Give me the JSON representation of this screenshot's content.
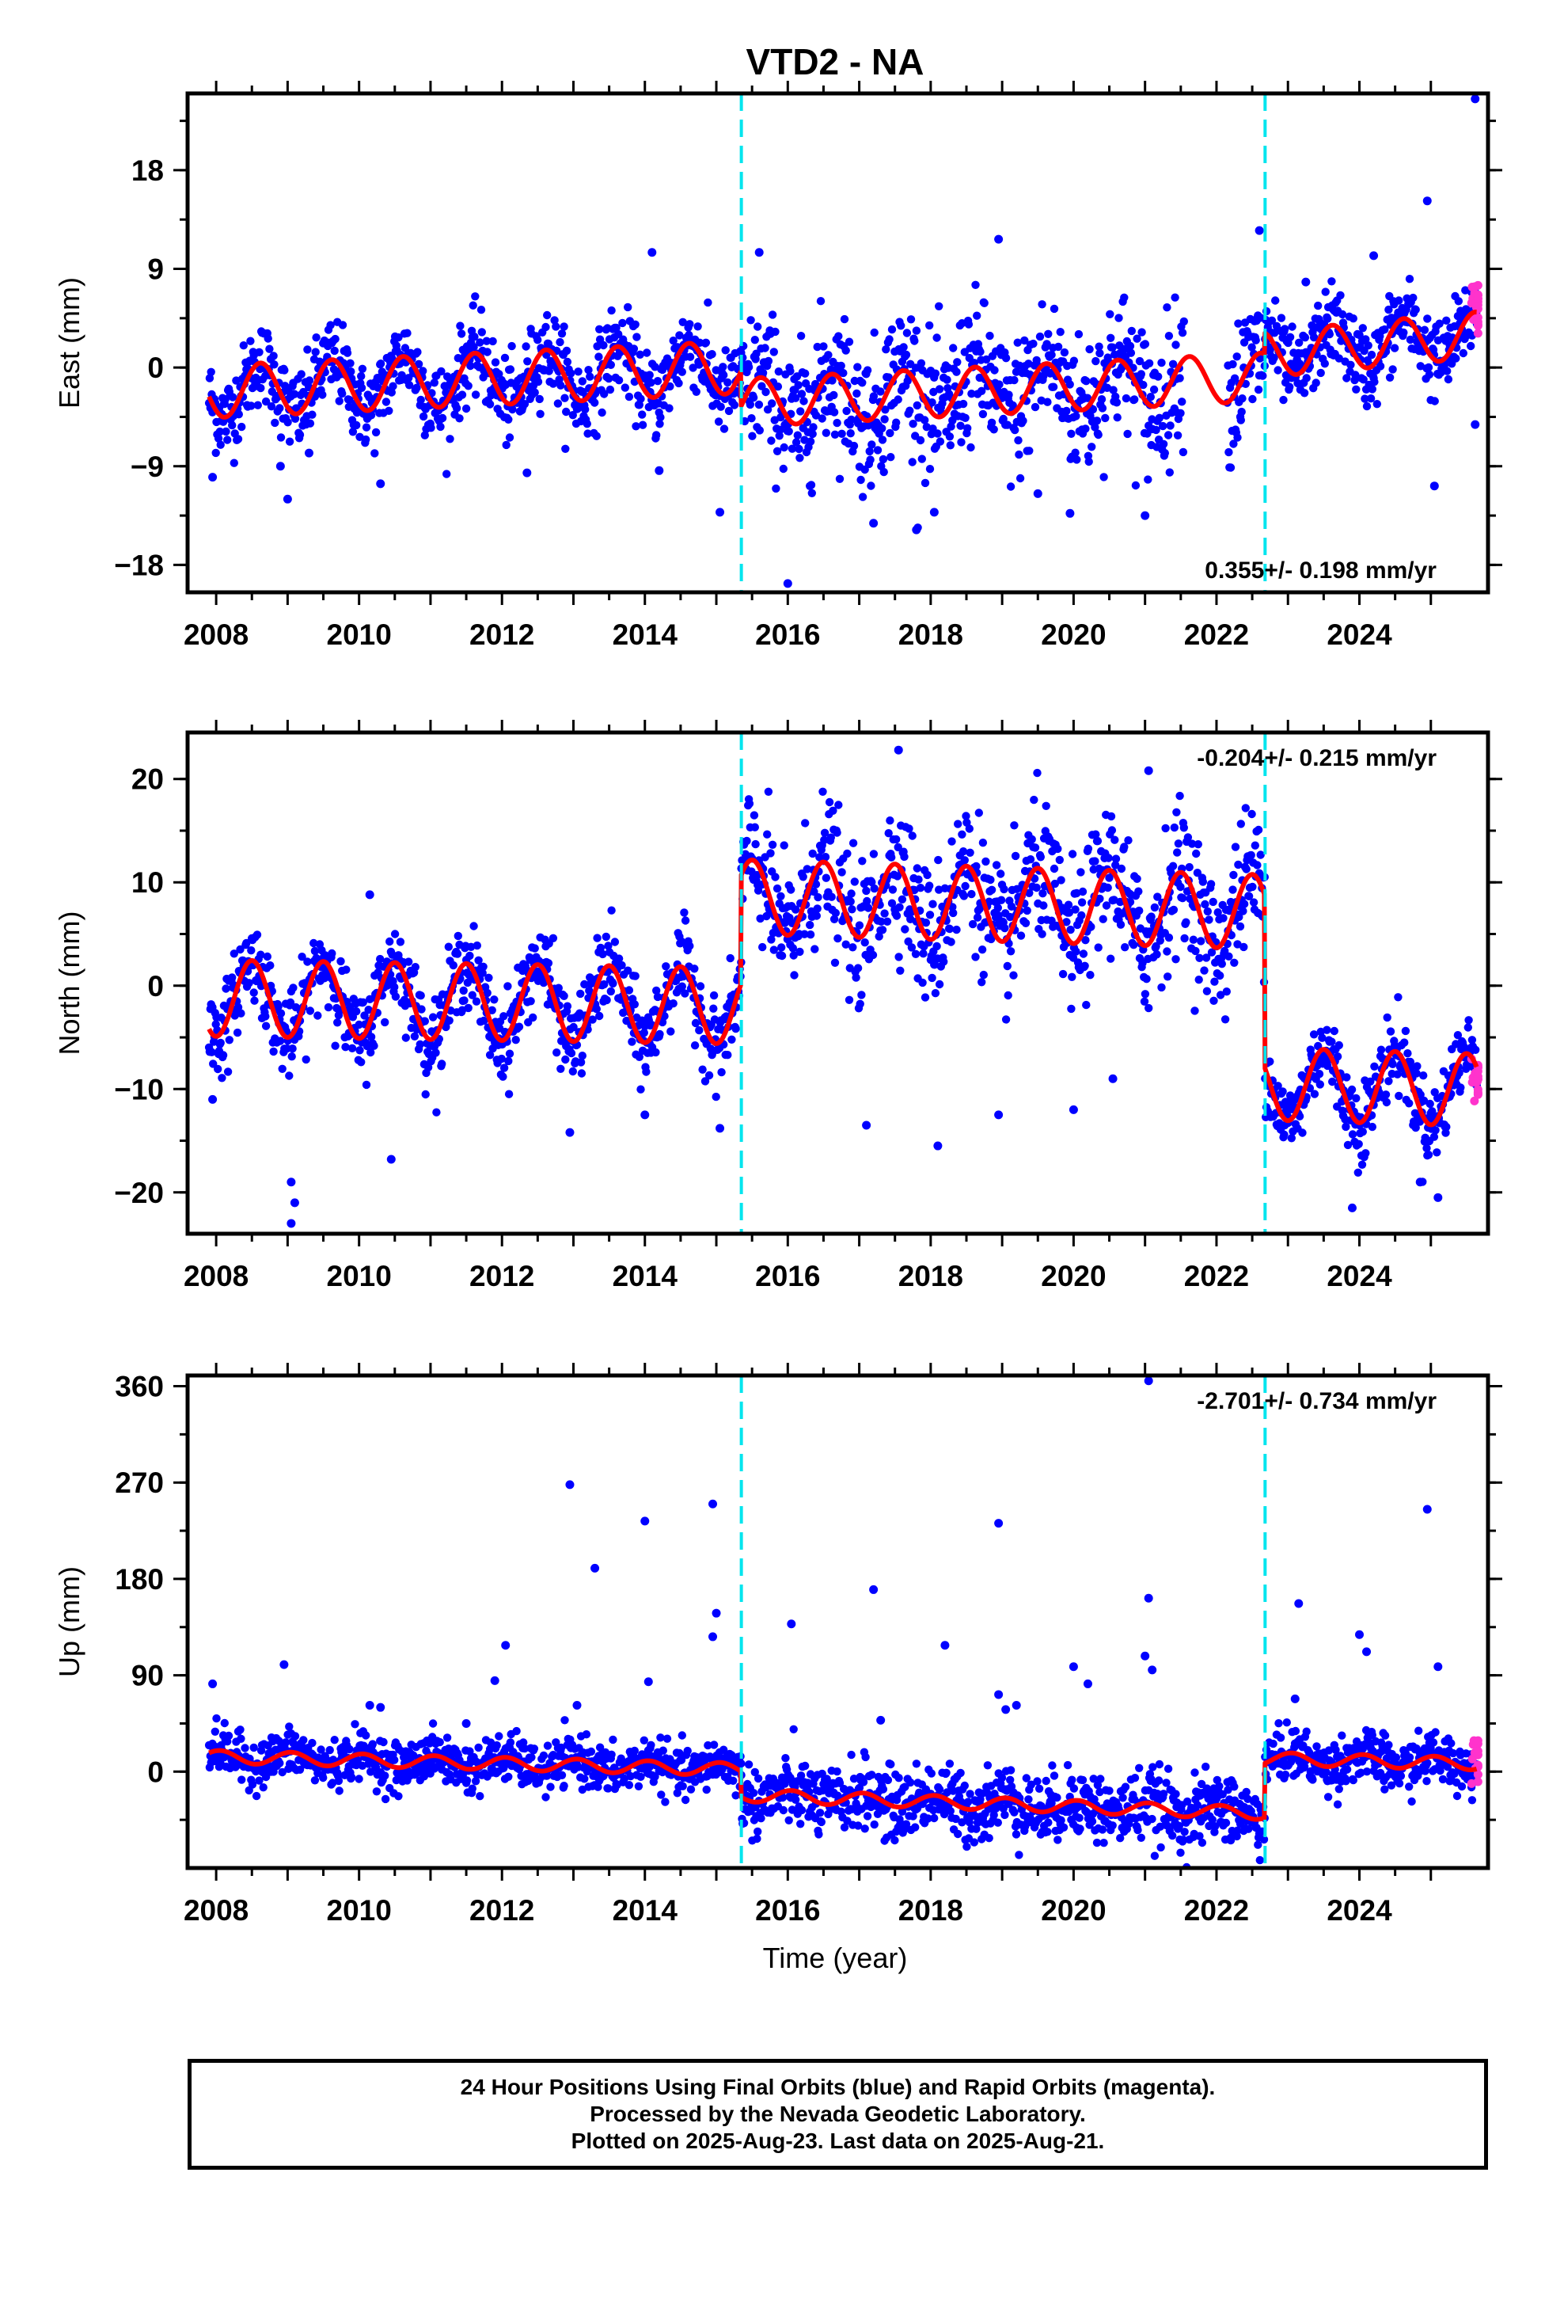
{
  "title": "VTD2 - NA",
  "xlabel": "Time (year)",
  "colors": {
    "final": "#0000ff",
    "rapid": "#ff33cc",
    "model": "#ff0000",
    "breaks": "#00e5ee",
    "frame": "#000000"
  },
  "footer": {
    "line1": "24 Hour Positions Using Final Orbits (blue) and Rapid Orbits (magenta).",
    "line2": "Processed by the Nevada Geodetic Laboratory.",
    "line3": "Plotted on 2025-Aug-23. Last data on 2025-Aug-21."
  },
  "chart_data": [
    {
      "type": "scatter",
      "ylabel": "East (mm)",
      "xlim": [
        2007.6,
        2025.8
      ],
      "ylim": [
        -20.5,
        25
      ],
      "xticks": [
        2008,
        2010,
        2012,
        2014,
        2016,
        2018,
        2020,
        2022,
        2024
      ],
      "yticks": [
        -18,
        -9,
        0,
        9,
        18
      ],
      "rate_label": "0.355+/- 0.198 mm/yr",
      "rate_label_pos": "bottom-right",
      "breaks": [
        2015.35,
        2022.68
      ],
      "model": {
        "segments": [
          {
            "x0": 2007.9,
            "x1": 2015.35,
            "offset": -2.2,
            "slope": 0.3,
            "amp": 2.4,
            "peak": 0.62
          },
          {
            "x0": 2015.35,
            "x1": 2022.68,
            "offset": -3.2,
            "slope": 0.32,
            "amp": 2.2,
            "peak": 0.62
          },
          {
            "x0": 2022.68,
            "x1": 2025.65,
            "offset": 1.2,
            "slope": 0.6,
            "amp": 2.1,
            "peak": 0.62
          }
        ],
        "noise": [
          1.9,
          3.2,
          1.8
        ]
      },
      "rapid": {
        "x0": 2025.45,
        "x1": 2025.65,
        "n": 24,
        "base": 5.5,
        "spread": 2.5
      },
      "outliers": [
        {
          "x": 2007.95,
          "y": -10.0
        },
        {
          "x": 2008.9,
          "y": -9.0
        },
        {
          "x": 2009.0,
          "y": -12.0
        },
        {
          "x": 2009.3,
          "y": -7.8
        },
        {
          "x": 2010.3,
          "y": -10.6
        },
        {
          "x": 2012.35,
          "y": -9.6
        },
        {
          "x": 2014.1,
          "y": 10.5
        },
        {
          "x": 2014.2,
          "y": -9.4
        },
        {
          "x": 2015.05,
          "y": -13.2
        },
        {
          "x": 2015.6,
          "y": 10.5
        },
        {
          "x": 2016.0,
          "y": -19.7
        },
        {
          "x": 2017.2,
          "y": -14.2
        },
        {
          "x": 2017.8,
          "y": -14.8
        },
        {
          "x": 2018.05,
          "y": -13.2
        },
        {
          "x": 2018.95,
          "y": 11.7
        },
        {
          "x": 2019.5,
          "y": -11.5
        },
        {
          "x": 2019.95,
          "y": -13.3
        },
        {
          "x": 2021.0,
          "y": -13.5
        },
        {
          "x": 2022.6,
          "y": 12.5
        },
        {
          "x": 2023.25,
          "y": 7.8
        },
        {
          "x": 2024.2,
          "y": 10.2
        },
        {
          "x": 2024.95,
          "y": 15.2
        },
        {
          "x": 2025.05,
          "y": -10.8
        },
        {
          "x": 2025.62,
          "y": 24.5
        },
        {
          "x": 2025.62,
          "y": -5.2
        }
      ]
    },
    {
      "type": "scatter",
      "ylabel": "North (mm)",
      "xlim": [
        2007.6,
        2025.8
      ],
      "ylim": [
        -24,
        24.5
      ],
      "xticks": [
        2008,
        2010,
        2012,
        2014,
        2016,
        2018,
        2020,
        2022,
        2024
      ],
      "yticks": [
        -20,
        -10,
        0,
        10,
        20
      ],
      "rate_label": "-0.204+/- 0.215 mm/yr",
      "rate_label_pos": "top-right",
      "breaks": [
        2015.35,
        2022.68
      ],
      "model": {
        "segments": [
          {
            "x0": 2007.9,
            "x1": 2015.35,
            "offset": -1.2,
            "slope": -0.1,
            "amp": 3.7,
            "peak": 0.5
          },
          {
            "x0": 2015.35,
            "x1": 2022.68,
            "offset": 8.6,
            "slope": -0.2,
            "amp": 3.6,
            "peak": 0.5
          },
          {
            "x0": 2022.68,
            "x1": 2025.65,
            "offset": -9.5,
            "slope": -0.2,
            "amp": 3.5,
            "peak": 0.5
          }
        ],
        "noise": [
          2.0,
          3.3,
          1.9
        ]
      },
      "rapid": {
        "x0": 2025.45,
        "x1": 2025.65,
        "n": 20,
        "base": -9.0,
        "spread": 2.2
      },
      "outliers": [
        {
          "x": 2007.95,
          "y": -11.0
        },
        {
          "x": 2009.05,
          "y": -19.0
        },
        {
          "x": 2009.1,
          "y": -21.0
        },
        {
          "x": 2009.05,
          "y": -23.0
        },
        {
          "x": 2010.15,
          "y": 8.8
        },
        {
          "x": 2010.45,
          "y": -16.8
        },
        {
          "x": 2012.95,
          "y": -14.2
        },
        {
          "x": 2014.0,
          "y": -12.5
        },
        {
          "x": 2015.05,
          "y": -13.8
        },
        {
          "x": 2017.1,
          "y": -13.5
        },
        {
          "x": 2017.55,
          "y": 22.8
        },
        {
          "x": 2018.1,
          "y": -15.5
        },
        {
          "x": 2018.95,
          "y": -12.5
        },
        {
          "x": 2020.0,
          "y": -12.0
        },
        {
          "x": 2020.55,
          "y": -9.0
        },
        {
          "x": 2021.05,
          "y": 20.8
        },
        {
          "x": 2023.9,
          "y": -21.5
        },
        {
          "x": 2024.85,
          "y": -19.0
        },
        {
          "x": 2025.1,
          "y": -20.5
        }
      ]
    },
    {
      "type": "scatter",
      "ylabel": "Up (mm)",
      "xlim": [
        2007.6,
        2025.8
      ],
      "ylim": [
        -90,
        370
      ],
      "xticks": [
        2008,
        2010,
        2012,
        2014,
        2016,
        2018,
        2020,
        2022,
        2024
      ],
      "yticks": [
        0,
        90,
        180,
        270,
        360
      ],
      "rate_label": "-2.701+/- 0.734 mm/yr",
      "rate_label_pos": "top-right",
      "breaks": [
        2015.35,
        2022.68
      ],
      "model": {
        "segments": [
          {
            "x0": 2007.9,
            "x1": 2015.35,
            "offset": 14.0,
            "slope": -1.6,
            "amp": 6.0,
            "peak": 0.05
          },
          {
            "x0": 2015.35,
            "x1": 2022.68,
            "offset": -22.0,
            "slope": -2.3,
            "amp": 6.0,
            "peak": 0.05
          },
          {
            "x0": 2022.68,
            "x1": 2025.65,
            "offset": 12.0,
            "slope": -1.5,
            "amp": 6.0,
            "peak": 0.05
          }
        ],
        "noise": [
          11,
          16,
          12
        ]
      },
      "rapid": {
        "x0": 2025.45,
        "x1": 2025.65,
        "n": 18,
        "base": 10,
        "spread": 22
      },
      "outliers": [
        {
          "x": 2007.95,
          "y": 82
        },
        {
          "x": 2008.95,
          "y": 100
        },
        {
          "x": 2010.15,
          "y": 62
        },
        {
          "x": 2010.3,
          "y": 60
        },
        {
          "x": 2011.5,
          "y": 45
        },
        {
          "x": 2011.9,
          "y": 85
        },
        {
          "x": 2012.05,
          "y": 118
        },
        {
          "x": 2012.95,
          "y": 268
        },
        {
          "x": 2013.05,
          "y": 62
        },
        {
          "x": 2013.3,
          "y": 190
        },
        {
          "x": 2014.0,
          "y": 234
        },
        {
          "x": 2014.05,
          "y": 84
        },
        {
          "x": 2014.95,
          "y": 250
        },
        {
          "x": 2015.0,
          "y": 148
        },
        {
          "x": 2014.95,
          "y": 126
        },
        {
          "x": 2016.05,
          "y": 138
        },
        {
          "x": 2017.2,
          "y": 170
        },
        {
          "x": 2017.3,
          "y": 48
        },
        {
          "x": 2018.2,
          "y": 118
        },
        {
          "x": 2018.95,
          "y": 232
        },
        {
          "x": 2018.95,
          "y": 72
        },
        {
          "x": 2019.05,
          "y": 58
        },
        {
          "x": 2019.2,
          "y": 62
        },
        {
          "x": 2020.0,
          "y": 98
        },
        {
          "x": 2020.2,
          "y": 82
        },
        {
          "x": 2021.05,
          "y": 365
        },
        {
          "x": 2021.05,
          "y": 162
        },
        {
          "x": 2021.0,
          "y": 108
        },
        {
          "x": 2021.1,
          "y": 95
        },
        {
          "x": 2023.15,
          "y": 157
        },
        {
          "x": 2023.1,
          "y": 68
        },
        {
          "x": 2024.0,
          "y": 128
        },
        {
          "x": 2024.1,
          "y": 112
        },
        {
          "x": 2024.95,
          "y": 245
        },
        {
          "x": 2025.1,
          "y": 98
        },
        {
          "x": 2022.2,
          "y": -62
        }
      ]
    }
  ]
}
